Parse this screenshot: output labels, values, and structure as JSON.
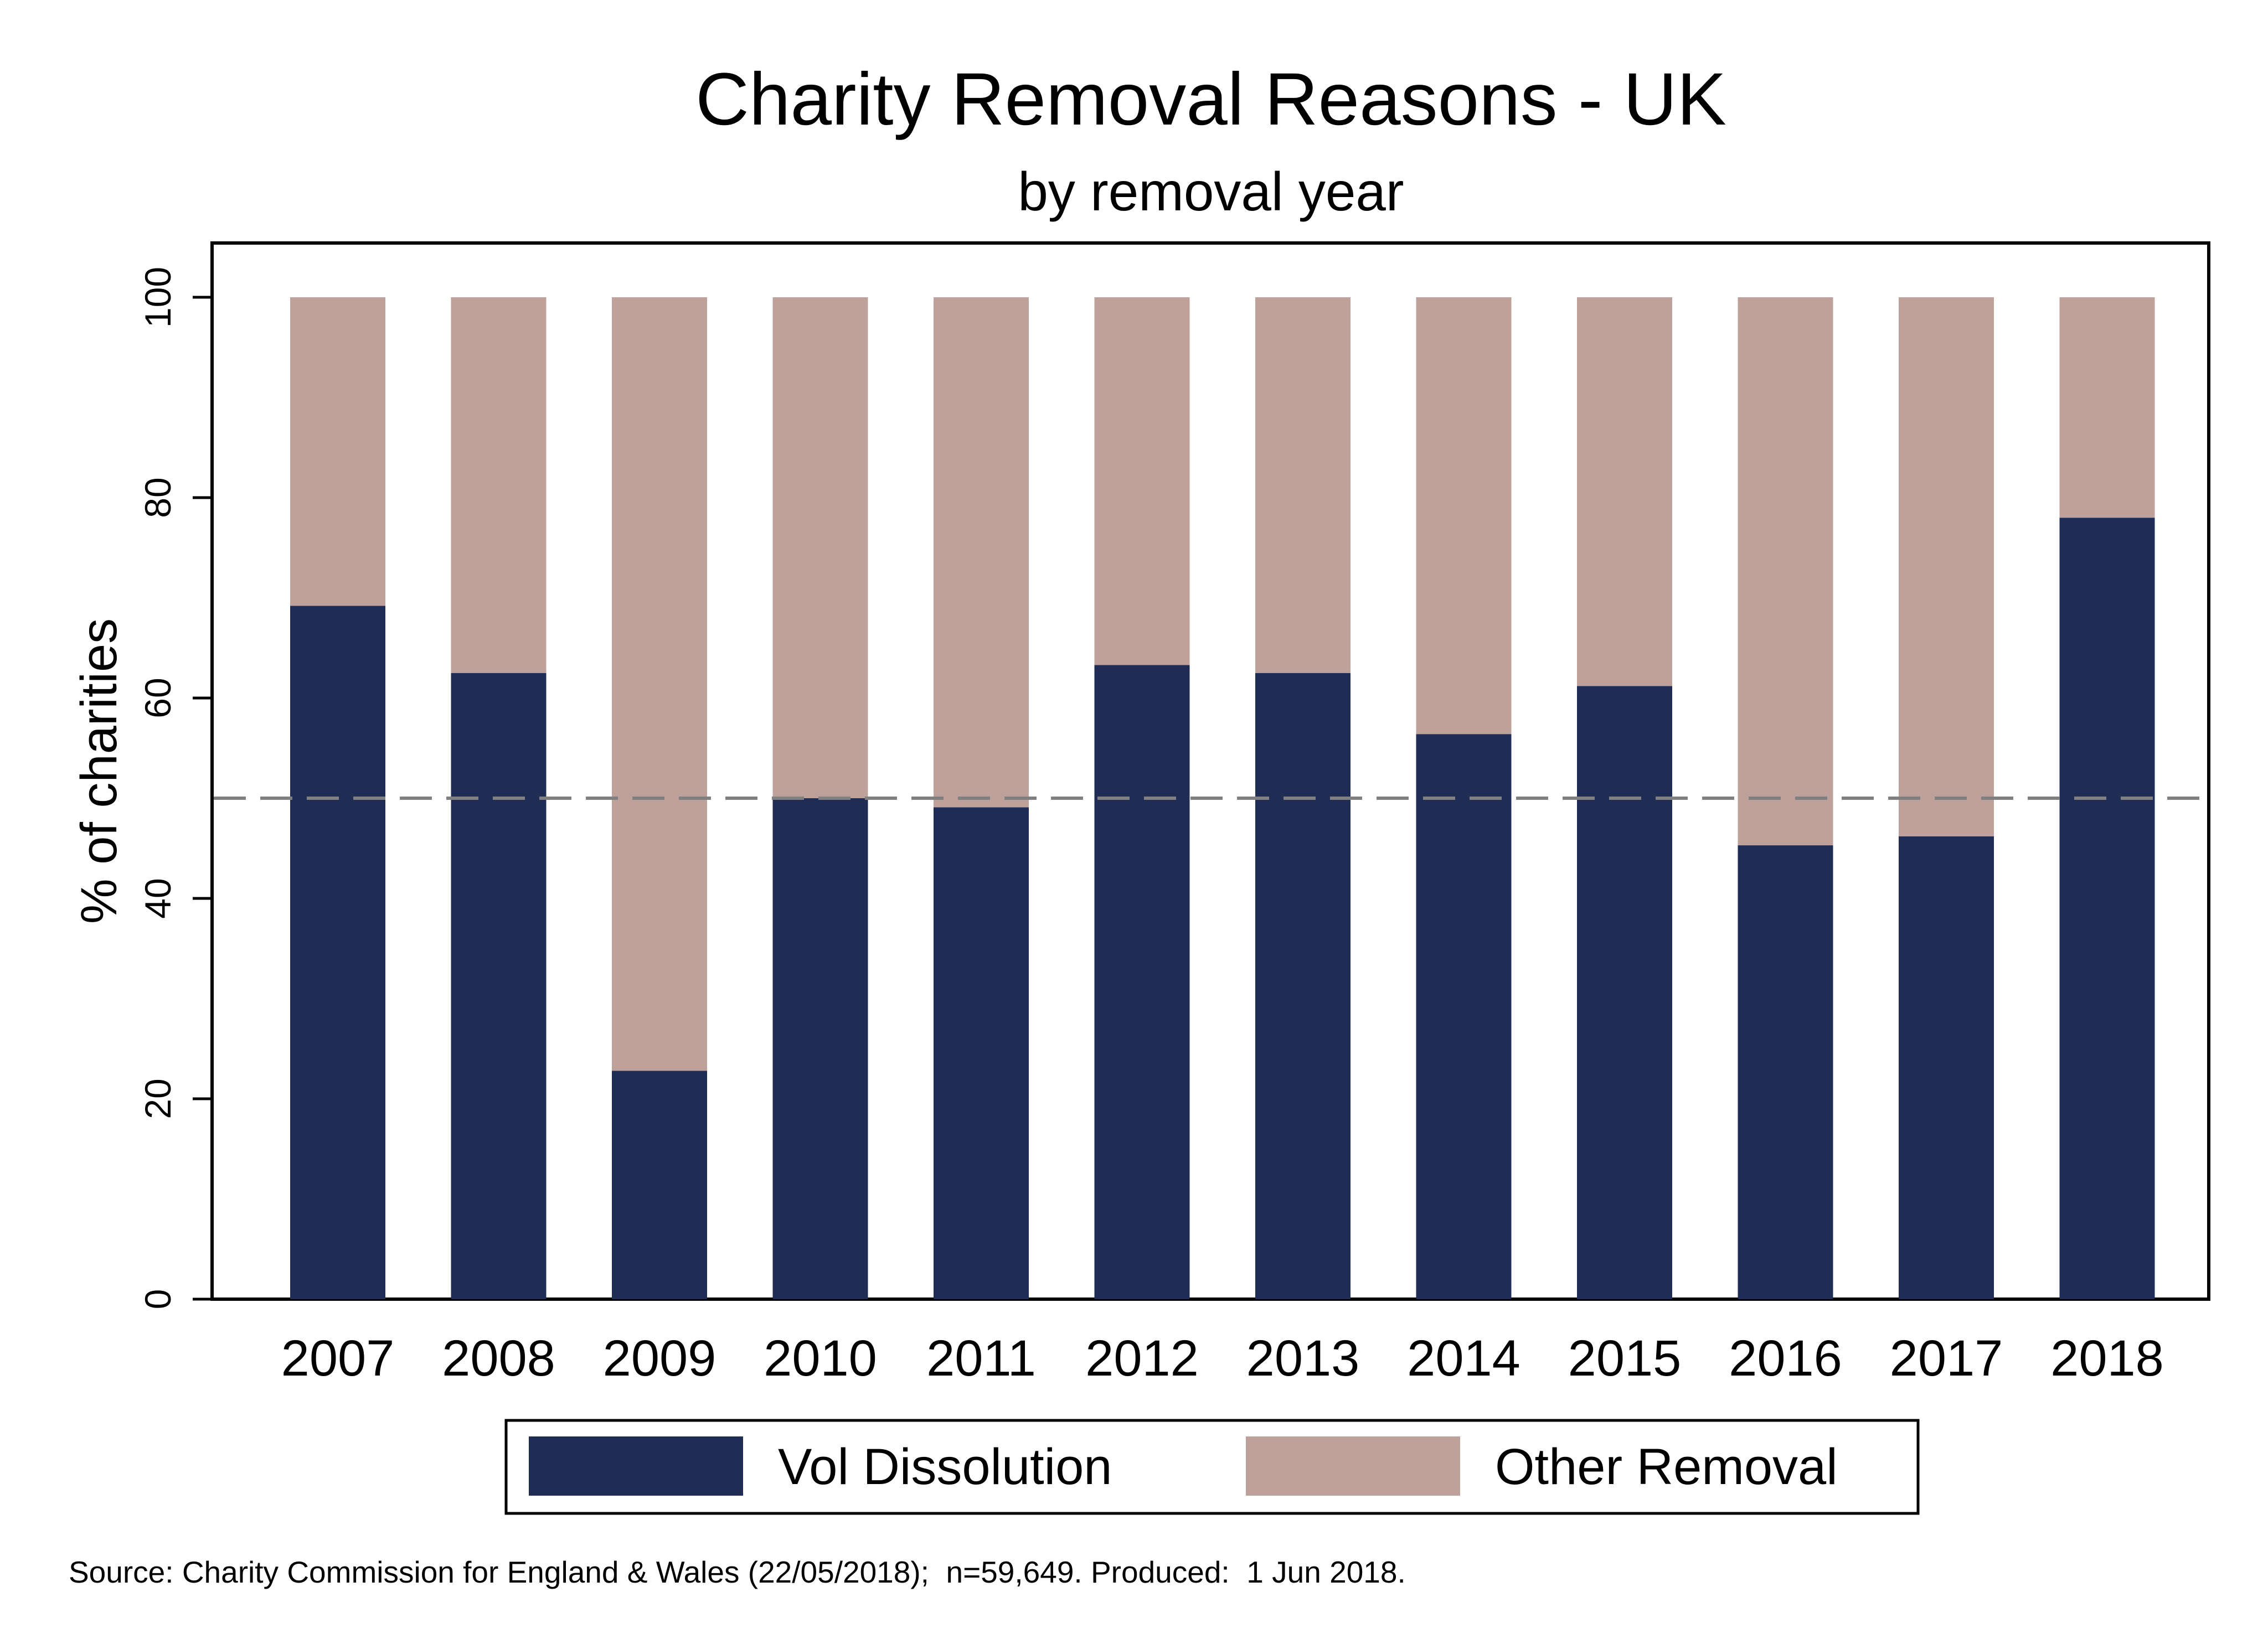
{
  "chart_data": {
    "type": "bar",
    "stacked": true,
    "title": "Charity Removal Reasons - UK",
    "subtitle": "by removal year",
    "xlabel": "",
    "ylabel": "% of charities",
    "ylim": [
      0,
      105
    ],
    "yticks": [
      0,
      20,
      40,
      60,
      80,
      100
    ],
    "reference_line": {
      "y": 50,
      "style": "dashed",
      "color": "#808080"
    },
    "grid": false,
    "legend_position": "bottom",
    "categories": [
      "2007",
      "2008",
      "2009",
      "2010",
      "2011",
      "2012",
      "2013",
      "2014",
      "2015",
      "2016",
      "2017",
      "2018"
    ],
    "series": [
      {
        "name": "Vol Dissolution",
        "color": "#1f2d55",
        "values": [
          69.2,
          62.5,
          22.8,
          50.0,
          49.1,
          63.3,
          62.5,
          56.4,
          61.2,
          45.3,
          46.2,
          78.0
        ]
      },
      {
        "name": "Other Removal",
        "color": "#bea19b",
        "values": [
          30.8,
          37.5,
          77.2,
          50.0,
          50.9,
          36.7,
          37.5,
          43.6,
          38.8,
          54.7,
          53.8,
          22.0
        ]
      }
    ]
  },
  "note": "Source: Charity Commission for England & Wales (22/05/2018);  n=59,649. Produced:  1 Jun 2018."
}
